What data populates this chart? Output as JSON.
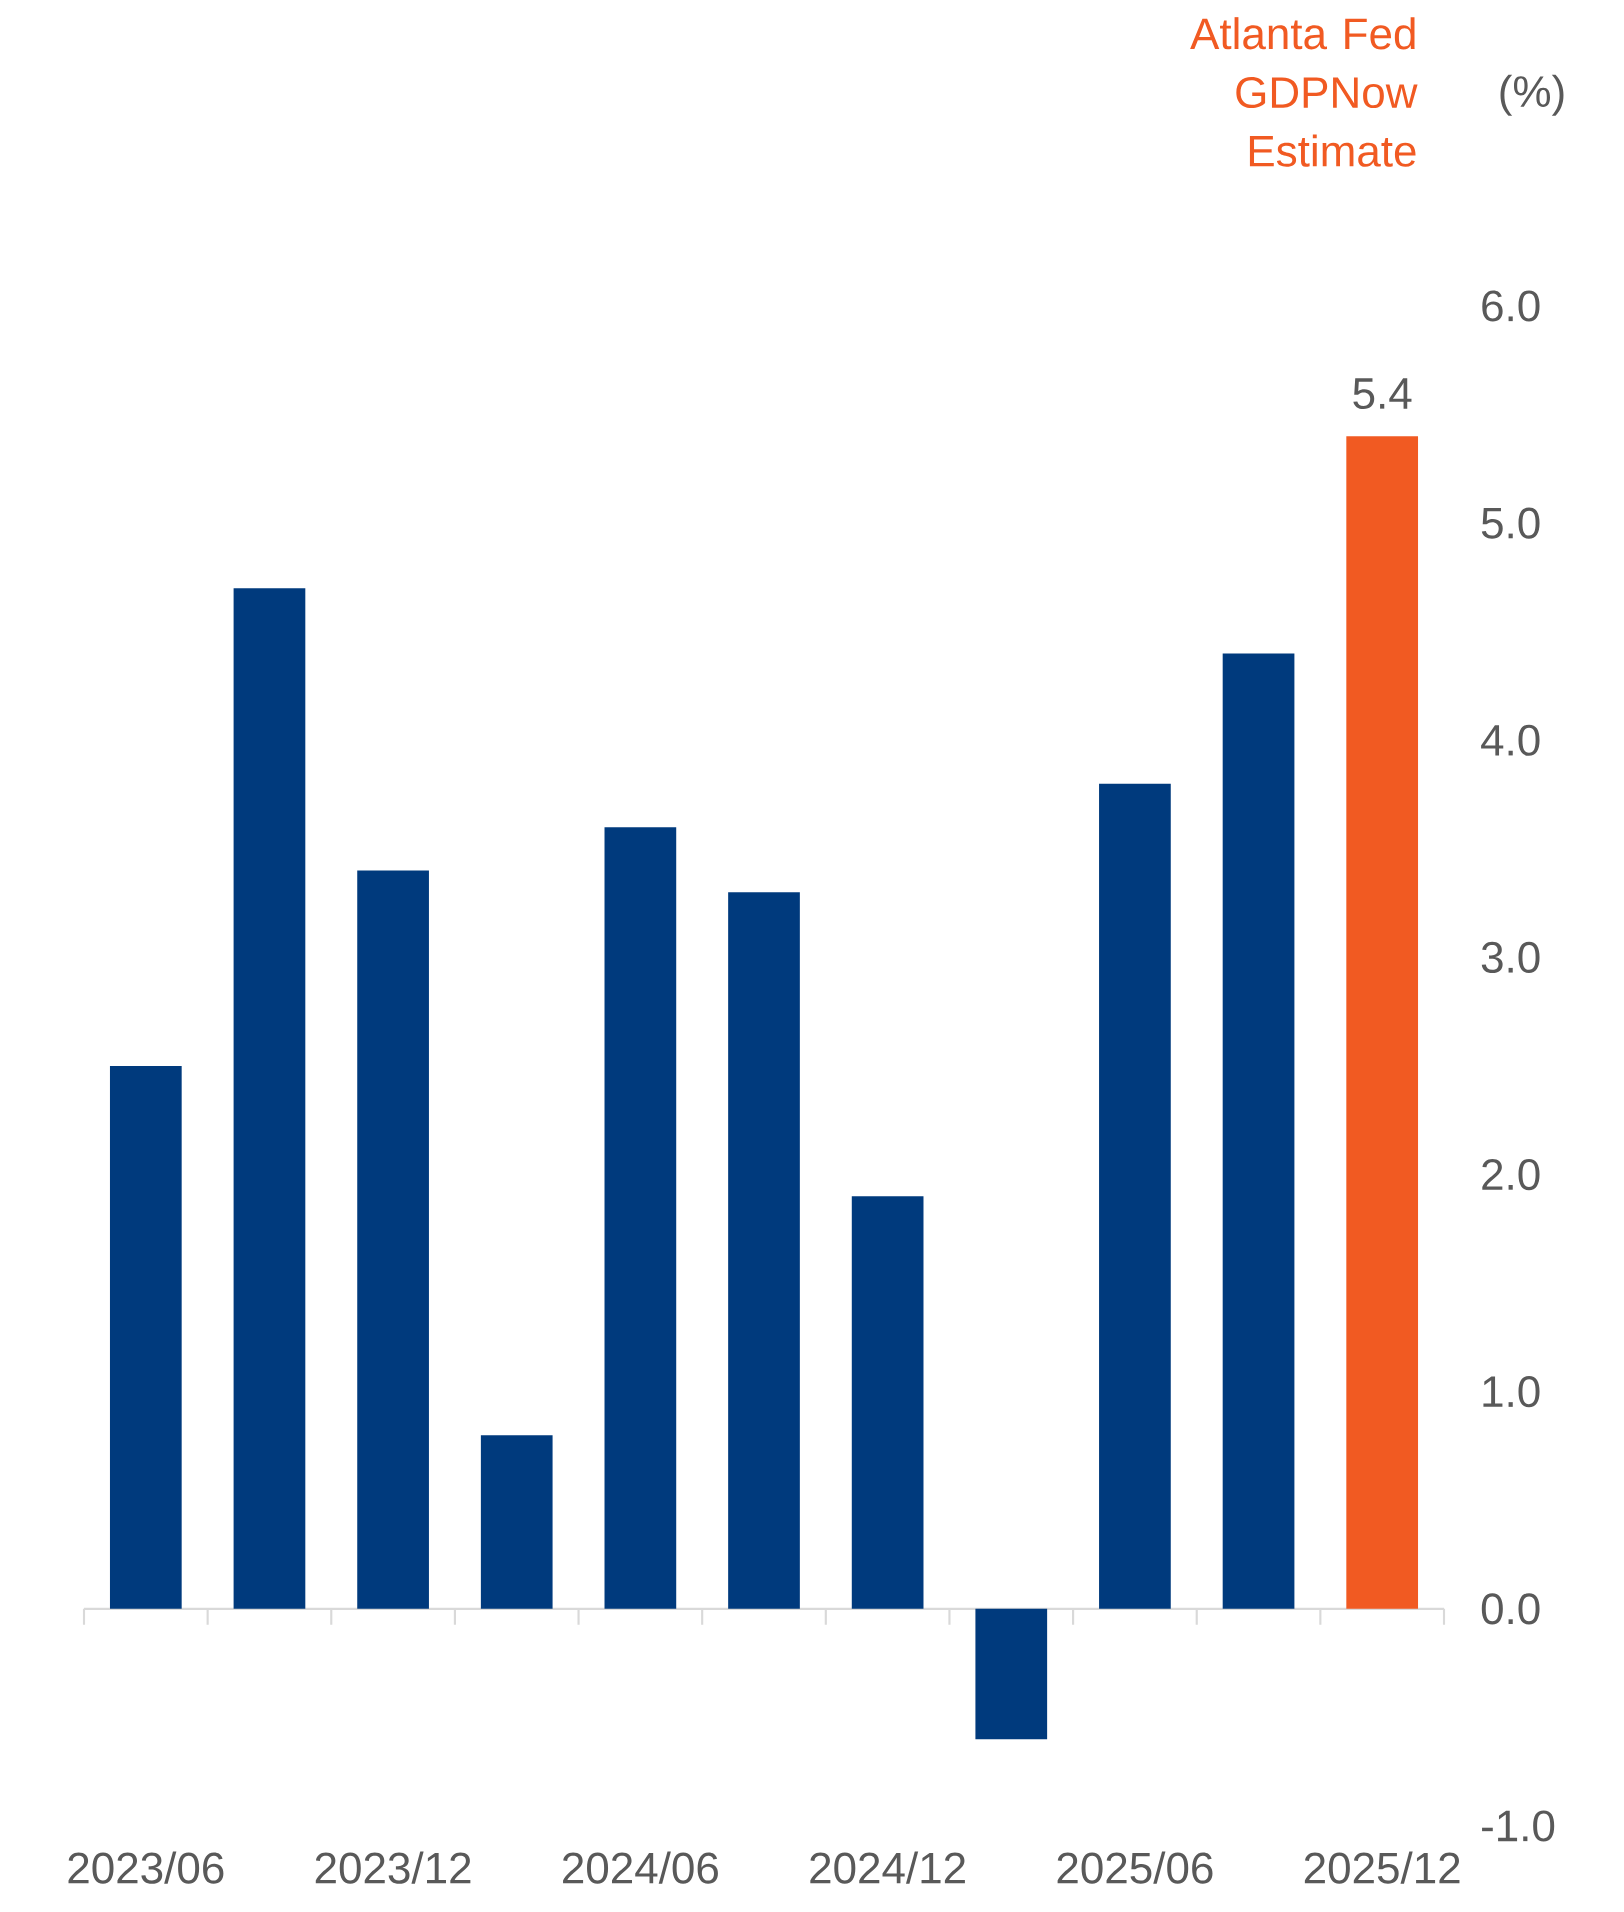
{
  "chart_data": {
    "type": "bar",
    "categories": [
      "2023/06",
      null,
      "2023/12",
      null,
      "2024/06",
      null,
      "2024/12",
      null,
      "2025/06",
      null,
      "2025/12"
    ],
    "values": [
      2.5,
      4.7,
      3.4,
      0.8,
      3.6,
      3.3,
      1.9,
      -0.6,
      3.8,
      4.4,
      5.4
    ],
    "colors": [
      "#003a7d",
      "#003a7d",
      "#003a7d",
      "#003a7d",
      "#003a7d",
      "#003a7d",
      "#003a7d",
      "#003a7d",
      "#003a7d",
      "#003a7d",
      "#f15a22"
    ],
    "value_labels": [
      null,
      null,
      null,
      null,
      null,
      null,
      null,
      null,
      null,
      null,
      "5.4"
    ],
    "ylabel": "(%)",
    "ylim": [
      -1,
      6
    ],
    "yticks": [
      {
        "value": -1,
        "label": "-1.0"
      },
      {
        "value": 0,
        "label": "0.0"
      },
      {
        "value": 1,
        "label": "1.0"
      },
      {
        "value": 2,
        "label": "2.0"
      },
      {
        "value": 3,
        "label": "3.0"
      },
      {
        "value": 4,
        "label": "4.0"
      },
      {
        "value": 5,
        "label": "5.0"
      },
      {
        "value": 6,
        "label": "6.0"
      }
    ],
    "annotations": [
      "Atlanta Fed GDPNow Estimate"
    ]
  }
}
